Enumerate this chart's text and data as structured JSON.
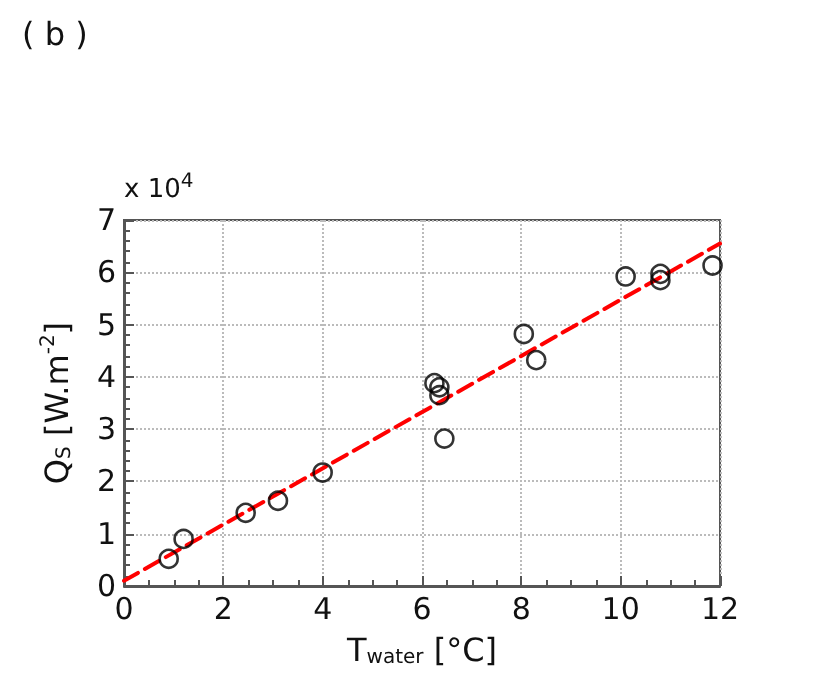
{
  "chart_data": {
    "type": "scatter",
    "title": "( b )",
    "xlabel": "T$_{water}$ [°C]",
    "ylabel": "Q$_{S}$ [W.m$^{-2}$]",
    "annotations": [
      "x 10$^{4}$"
    ],
    "xlim": [
      0,
      12
    ],
    "xticks": [
      0,
      2,
      4,
      6,
      8,
      10,
      12
    ],
    "ylim": [
      0,
      7
    ],
    "yticks": [
      0,
      1,
      2,
      3,
      4,
      5,
      6,
      7
    ],
    "grid": true,
    "series": [
      {
        "marker": "circle",
        "color": "#000000",
        "x": [
          0.9,
          1.2,
          2.45,
          3.1,
          4.0,
          6.25,
          6.35,
          6.35,
          6.45,
          8.05,
          8.3,
          10.1,
          10.8,
          10.8,
          11.85
        ],
        "values": [
          0.52,
          0.9,
          1.4,
          1.63,
          2.17,
          3.88,
          3.8,
          3.65,
          2.82,
          4.82,
          4.32,
          5.92,
          5.97,
          5.85,
          6.13
        ]
      },
      {
        "type": "line",
        "marker": "none",
        "line_style": "dashed",
        "color": "#ff0000",
        "x": [
          0,
          12
        ],
        "values": [
          0.1,
          6.55
        ]
      }
    ]
  }
}
